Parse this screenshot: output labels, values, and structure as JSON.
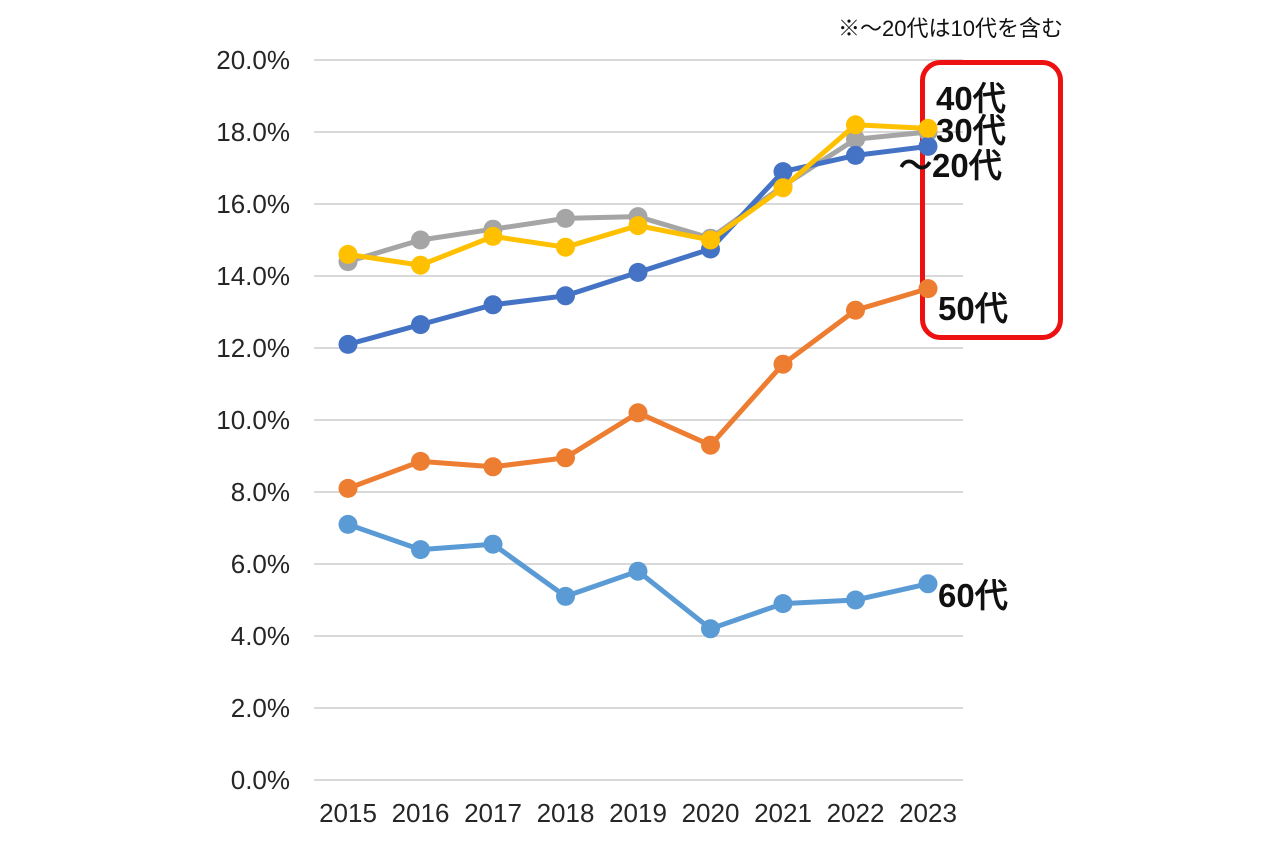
{
  "footnote": "※～20代は10代を含む",
  "chart_data": {
    "type": "line",
    "categories": [
      "2015",
      "2016",
      "2017",
      "2018",
      "2019",
      "2020",
      "2021",
      "2022",
      "2023"
    ],
    "yticks": [
      "20.0%",
      "18.0%",
      "16.0%",
      "14.0%",
      "12.0%",
      "10.0%",
      "8.0%",
      "6.0%",
      "4.0%",
      "2.0%",
      "0.0%"
    ],
    "ylim": [
      0,
      20
    ],
    "ytick_step": 2,
    "grid": true,
    "gridline_color": "#D9D9D9",
    "legend_position": "right-end-of-line-labels",
    "series": [
      {
        "id": "40s",
        "label": "40代",
        "color": "#FFC000",
        "values": [
          14.6,
          14.3,
          15.1,
          14.8,
          15.4,
          15.0,
          16.45,
          18.2,
          18.1
        ]
      },
      {
        "id": "30s",
        "label": "30代",
        "color": "#A5A5A5",
        "values": [
          14.4,
          15.0,
          15.3,
          15.6,
          15.65,
          15.05,
          16.5,
          17.8,
          18.0
        ]
      },
      {
        "id": "under20s",
        "label": "～20代",
        "color": "#4472C4",
        "values": [
          12.1,
          12.65,
          13.2,
          13.45,
          14.1,
          14.75,
          16.9,
          17.35,
          17.6
        ]
      },
      {
        "id": "50s",
        "label": "50代",
        "color": "#ED7D31",
        "values": [
          8.1,
          8.85,
          8.7,
          8.95,
          10.2,
          9.3,
          11.55,
          13.05,
          13.65
        ]
      },
      {
        "id": "60s",
        "label": "60代",
        "color": "#5B9BD5",
        "values": [
          7.1,
          6.4,
          6.55,
          5.1,
          5.8,
          4.2,
          4.9,
          5.0,
          5.45
        ]
      }
    ],
    "highlight_box": {
      "color": "#EE1111",
      "enclosed_labels": [
        "40代",
        "30代",
        "～20代",
        "50代"
      ]
    }
  }
}
